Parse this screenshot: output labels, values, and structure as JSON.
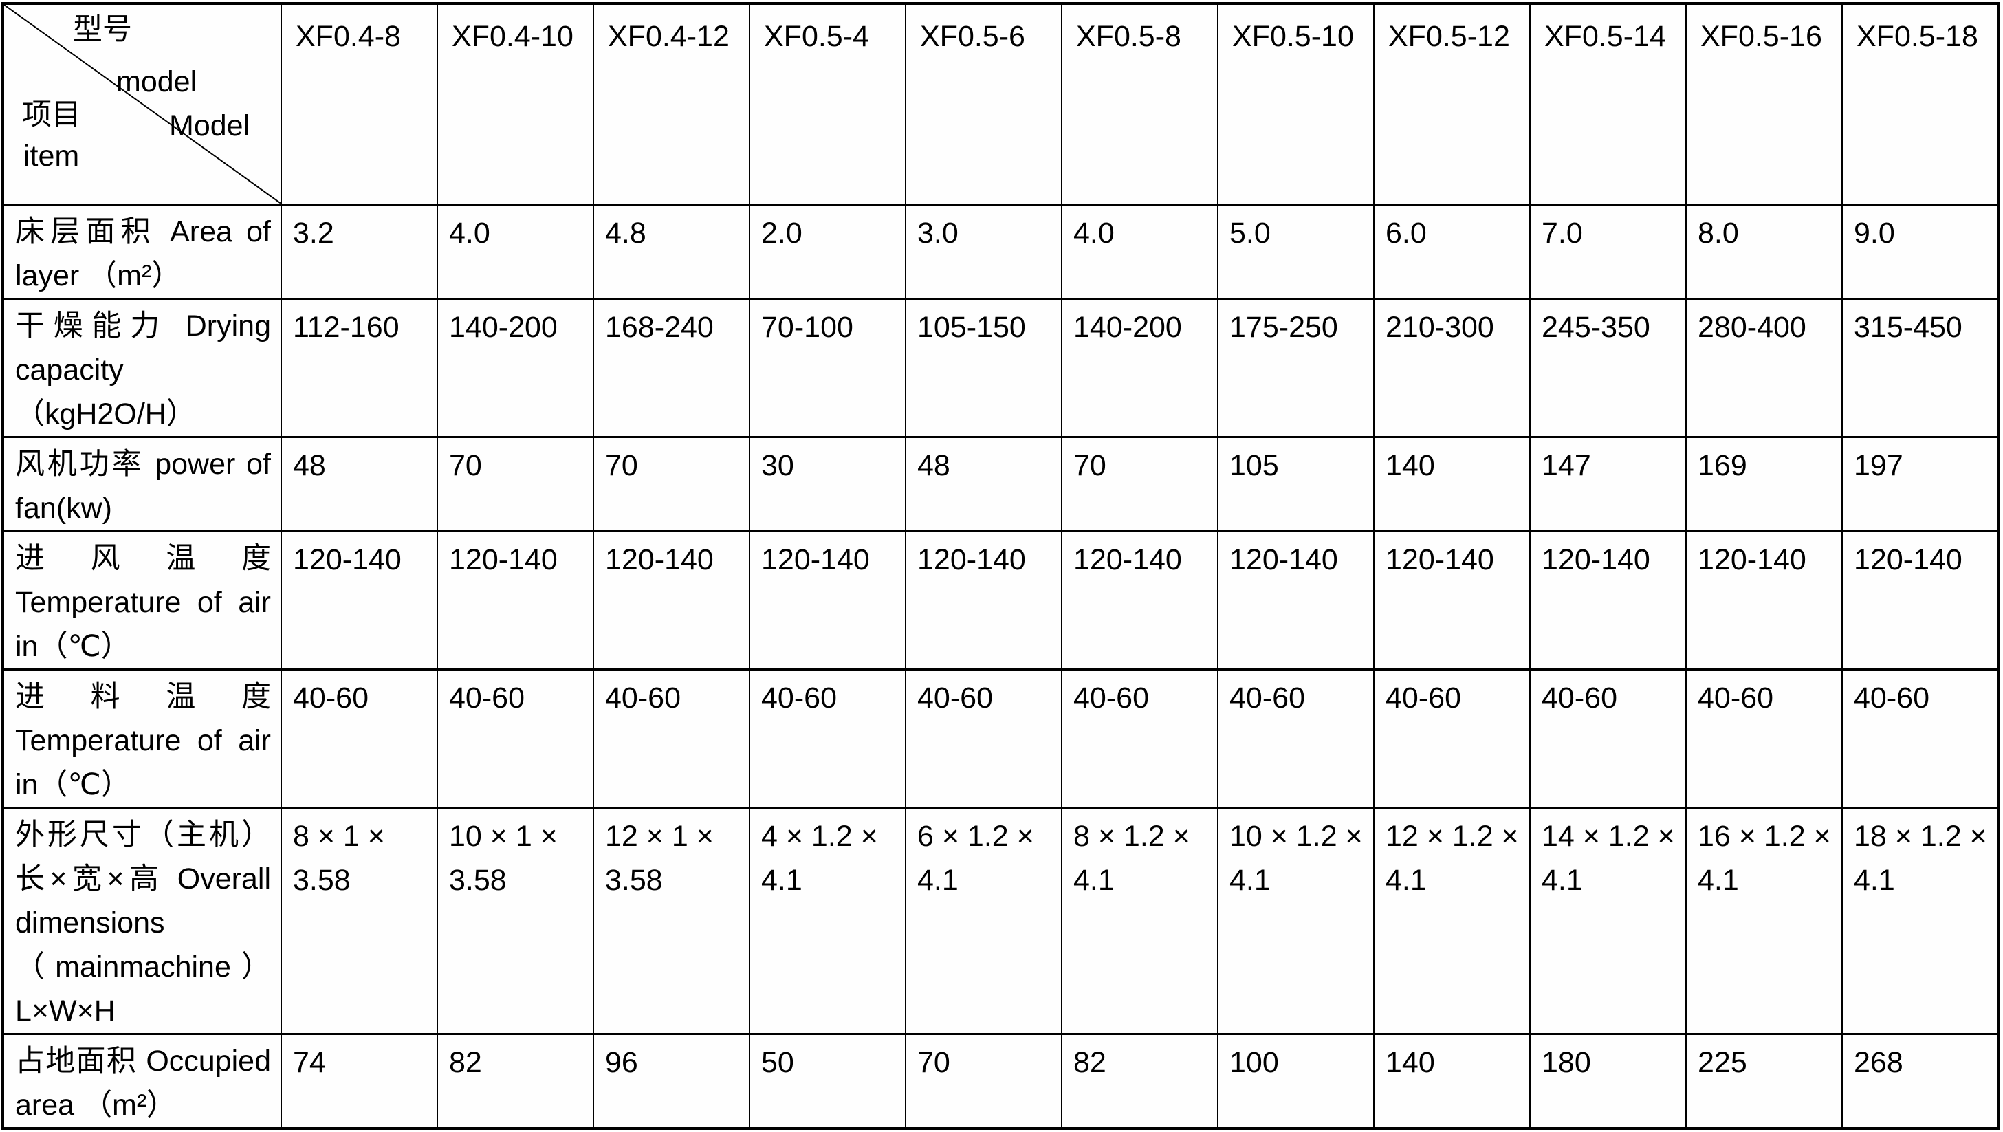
{
  "table": {
    "corner": {
      "model_cn": "型号",
      "model_en_lower": "model",
      "model_en_cap": "Model",
      "item_cn": "项目",
      "item_en": "item"
    },
    "columns": [
      "XF0.4-8",
      "XF0.4-10",
      "XF0.4-12",
      "XF0.5-4",
      "XF0.5-6",
      "XF0.5-8",
      "XF0.5-10",
      "XF0.5-12",
      "XF0.5-14",
      "XF0.5-16",
      "XF0.5-18"
    ],
    "rows": [
      {
        "label": "床层面积 Area of layer （m²）",
        "values": [
          "3.2",
          "4.0",
          "4.8",
          "2.0",
          "3.0",
          "4.0",
          "5.0",
          "6.0",
          "7.0",
          "8.0",
          "9.0"
        ]
      },
      {
        "label": "干燥能力 Drying capacity（kgH2O/H）",
        "values": [
          "112-160",
          "140-200",
          "168-240",
          "70-100",
          "105-150",
          "140-200",
          "175-250",
          "210-300",
          "245-350",
          "280-400",
          "315-450"
        ]
      },
      {
        "label": "风机功率 power of fan(kw)",
        "values": [
          "48",
          "70",
          "70",
          "30",
          "48",
          "70",
          "105",
          "140",
          "147",
          "169",
          "197"
        ]
      },
      {
        "label": "进风温度 Temperature of air in（℃）",
        "values": [
          "120-140",
          "120-140",
          "120-140",
          "120-140",
          "120-140",
          "120-140",
          "120-140",
          "120-140",
          "120-140",
          "120-140",
          "120-140"
        ]
      },
      {
        "label": "进料温度 Temperature of air in（℃）",
        "values": [
          "40-60",
          "40-60",
          "40-60",
          "40-60",
          "40-60",
          "40-60",
          "40-60",
          "40-60",
          "40-60",
          "40-60",
          "40-60"
        ]
      },
      {
        "label": "外形尺寸（主机）长×宽×高 Overall dimensions （mainmachine）L×W×H",
        "values": [
          "8 × 1 × 3.58",
          "10 × 1 × 3.58",
          "12 × 1 × 3.58",
          "4 × 1.2 × 4.1",
          "6 × 1.2 × 4.1",
          "8 × 1.2 × 4.1",
          "10 × 1.2 × 4.1",
          "12 × 1.2 × 4.1",
          "14 × 1.2 × 4.1",
          "16 × 1.2 × 4.1",
          "18 × 1.2 × 4.1"
        ]
      },
      {
        "label": "占地面积 Occupied area （m²）",
        "values": [
          "74",
          "82",
          "96",
          "50",
          "70",
          "82",
          "100",
          "140",
          "180",
          "225",
          "268"
        ]
      }
    ]
  },
  "colors": {
    "border": "#000000",
    "text": "#000000",
    "background": "#fefefe"
  }
}
